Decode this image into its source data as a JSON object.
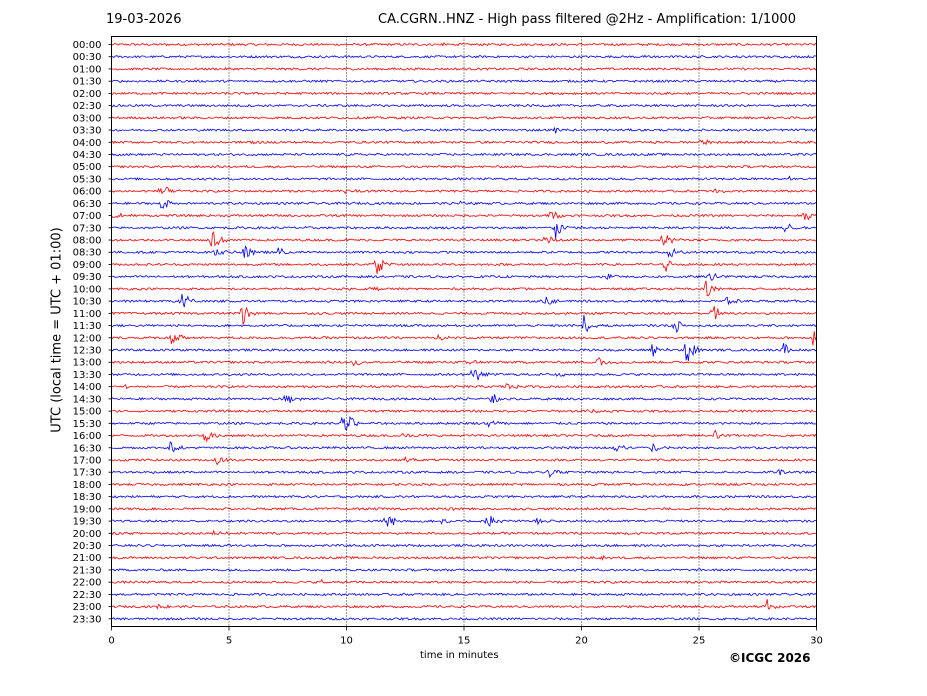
{
  "header": {
    "date": "19-03-2026",
    "title": "CA.CGRN..HNZ - High pass filtered @2Hz - Amplification: 1/1000"
  },
  "footer": {
    "copyright": "©ICGC 2026"
  },
  "chart_data": {
    "type": "line",
    "title": "CA.CGRN..HNZ - High pass filtered @2Hz - Amplification: 1/1000",
    "xlabel": "time in minutes",
    "ylabel": "UTC (local time = UTC + 01:00)",
    "xlim": [
      0,
      30
    ],
    "x_ticks": [
      0,
      5,
      10,
      15,
      20,
      25,
      30
    ],
    "x_gridlines": [
      5,
      10,
      15,
      20,
      25
    ],
    "grid": "vertical dotted",
    "colors": {
      "odd_rows": "#ff0000",
      "even_rows": "#0000ff",
      "grid": "#000000"
    },
    "rows": [
      "00:00",
      "00:30",
      "01:00",
      "01:30",
      "02:00",
      "02:30",
      "03:00",
      "03:30",
      "04:00",
      "04:30",
      "05:00",
      "05:30",
      "06:00",
      "06:30",
      "07:00",
      "07:30",
      "08:00",
      "08:30",
      "09:00",
      "09:30",
      "10:00",
      "10:30",
      "11:00",
      "11:30",
      "12:00",
      "12:30",
      "13:00",
      "13:30",
      "14:00",
      "14:30",
      "15:00",
      "15:30",
      "16:00",
      "16:30",
      "17:00",
      "17:30",
      "18:00",
      "18:30",
      "19:00",
      "19:30",
      "20:00",
      "20:30",
      "21:00",
      "21:30",
      "22:00",
      "22:30",
      "23:00",
      "23:30"
    ],
    "events": [
      {
        "row": "00:00",
        "t": 13.9,
        "amp": 0.25
      },
      {
        "row": "00:30",
        "t": 22.8,
        "amp": 0.15
      },
      {
        "row": "00:30",
        "t": 26.8,
        "amp": 0.3
      },
      {
        "row": "03:30",
        "t": 18.9,
        "amp": 0.35
      },
      {
        "row": "04:00",
        "t": 5.8,
        "amp": 0.3
      },
      {
        "row": "04:00",
        "t": 22.1,
        "amp": 0.2
      },
      {
        "row": "04:00",
        "t": 25.1,
        "amp": 0.35
      },
      {
        "row": "05:30",
        "t": 28.8,
        "amp": 0.3
      },
      {
        "row": "06:00",
        "t": 2.1,
        "amp": 0.9
      },
      {
        "row": "06:00",
        "t": 10.0,
        "amp": 0.5
      },
      {
        "row": "06:00",
        "t": 25.7,
        "amp": 0.3
      },
      {
        "row": "06:30",
        "t": 2.1,
        "amp": 0.9
      },
      {
        "row": "06:30",
        "t": 14.8,
        "amp": 0.25
      },
      {
        "row": "07:00",
        "t": 0.1,
        "amp": 0.8
      },
      {
        "row": "07:00",
        "t": 18.7,
        "amp": 0.6
      },
      {
        "row": "07:00",
        "t": 29.5,
        "amp": 0.6
      },
      {
        "row": "07:30",
        "t": 18.9,
        "amp": 1.3
      },
      {
        "row": "07:30",
        "t": 28.7,
        "amp": 0.6
      },
      {
        "row": "08:00",
        "t": 4.3,
        "amp": 1.3
      },
      {
        "row": "08:00",
        "t": 18.5,
        "amp": 0.6
      },
      {
        "row": "08:00",
        "t": 23.5,
        "amp": 1.2
      },
      {
        "row": "08:30",
        "t": 4.4,
        "amp": 0.6
      },
      {
        "row": "08:30",
        "t": 5.7,
        "amp": 1.2
      },
      {
        "row": "08:30",
        "t": 7.1,
        "amp": 0.5
      },
      {
        "row": "08:30",
        "t": 23.7,
        "amp": 0.7
      },
      {
        "row": "09:00",
        "t": 11.3,
        "amp": 1.1
      },
      {
        "row": "09:00",
        "t": 23.6,
        "amp": 0.8
      },
      {
        "row": "09:30",
        "t": 21.1,
        "amp": 0.5
      },
      {
        "row": "09:30",
        "t": 25.5,
        "amp": 0.6
      },
      {
        "row": "10:00",
        "t": 11.0,
        "amp": 0.4
      },
      {
        "row": "10:00",
        "t": 25.3,
        "amp": 1.1
      },
      {
        "row": "10:30",
        "t": 3.0,
        "amp": 1.1
      },
      {
        "row": "10:30",
        "t": 18.5,
        "amp": 0.8
      },
      {
        "row": "10:30",
        "t": 26.2,
        "amp": 0.5
      },
      {
        "row": "11:00",
        "t": 5.6,
        "amp": 1.4
      },
      {
        "row": "11:00",
        "t": 25.6,
        "amp": 1.0
      },
      {
        "row": "11:30",
        "t": 20.1,
        "amp": 1.1
      },
      {
        "row": "11:30",
        "t": 24.0,
        "amp": 0.8
      },
      {
        "row": "12:00",
        "t": 2.6,
        "amp": 0.9
      },
      {
        "row": "12:00",
        "t": 13.9,
        "amp": 0.4
      },
      {
        "row": "12:00",
        "t": 29.9,
        "amp": 1.3
      },
      {
        "row": "12:30",
        "t": 23.0,
        "amp": 0.8
      },
      {
        "row": "12:30",
        "t": 24.5,
        "amp": 1.6
      },
      {
        "row": "12:30",
        "t": 28.6,
        "amp": 0.8
      },
      {
        "row": "13:00",
        "t": 10.3,
        "amp": 0.6
      },
      {
        "row": "13:00",
        "t": 15.1,
        "amp": 0.6
      },
      {
        "row": "13:00",
        "t": 20.7,
        "amp": 0.7
      },
      {
        "row": "13:30",
        "t": 15.4,
        "amp": 1.2
      },
      {
        "row": "13:30",
        "t": 18.8,
        "amp": 0.5
      },
      {
        "row": "14:00",
        "t": 0.5,
        "amp": 0.5
      },
      {
        "row": "14:00",
        "t": 10.7,
        "amp": 0.3
      },
      {
        "row": "14:00",
        "t": 16.8,
        "amp": 0.5
      },
      {
        "row": "14:30",
        "t": 7.4,
        "amp": 0.8
      },
      {
        "row": "14:30",
        "t": 16.2,
        "amp": 0.6
      },
      {
        "row": "15:00",
        "t": 20.3,
        "amp": 0.4
      },
      {
        "row": "15:30",
        "t": 9.9,
        "amp": 1.8
      },
      {
        "row": "15:30",
        "t": 16.1,
        "amp": 0.6
      },
      {
        "row": "16:00",
        "t": 4.0,
        "amp": 0.9
      },
      {
        "row": "16:00",
        "t": 12.4,
        "amp": 0.4
      },
      {
        "row": "16:00",
        "t": 25.7,
        "amp": 0.6
      },
      {
        "row": "16:30",
        "t": 2.5,
        "amp": 0.7
      },
      {
        "row": "16:30",
        "t": 21.5,
        "amp": 0.9
      },
      {
        "row": "16:30",
        "t": 23.0,
        "amp": 0.7
      },
      {
        "row": "17:00",
        "t": 4.5,
        "amp": 0.6
      },
      {
        "row": "17:00",
        "t": 12.4,
        "amp": 0.4
      },
      {
        "row": "17:30",
        "t": 18.6,
        "amp": 0.5
      },
      {
        "row": "17:30",
        "t": 28.4,
        "amp": 0.3
      },
      {
        "row": "19:00",
        "t": 14.4,
        "amp": 0.3
      },
      {
        "row": "19:30",
        "t": 11.7,
        "amp": 1.1
      },
      {
        "row": "19:30",
        "t": 14.1,
        "amp": 0.5
      },
      {
        "row": "19:30",
        "t": 16.0,
        "amp": 0.9
      },
      {
        "row": "19:30",
        "t": 18.1,
        "amp": 0.5
      },
      {
        "row": "20:00",
        "t": 4.2,
        "amp": 0.3
      },
      {
        "row": "21:00",
        "t": 20.8,
        "amp": 0.3
      },
      {
        "row": "22:00",
        "t": 8.9,
        "amp": 0.3
      },
      {
        "row": "23:00",
        "t": 2.0,
        "amp": 0.4
      },
      {
        "row": "23:00",
        "t": 27.9,
        "amp": 0.7
      }
    ]
  }
}
